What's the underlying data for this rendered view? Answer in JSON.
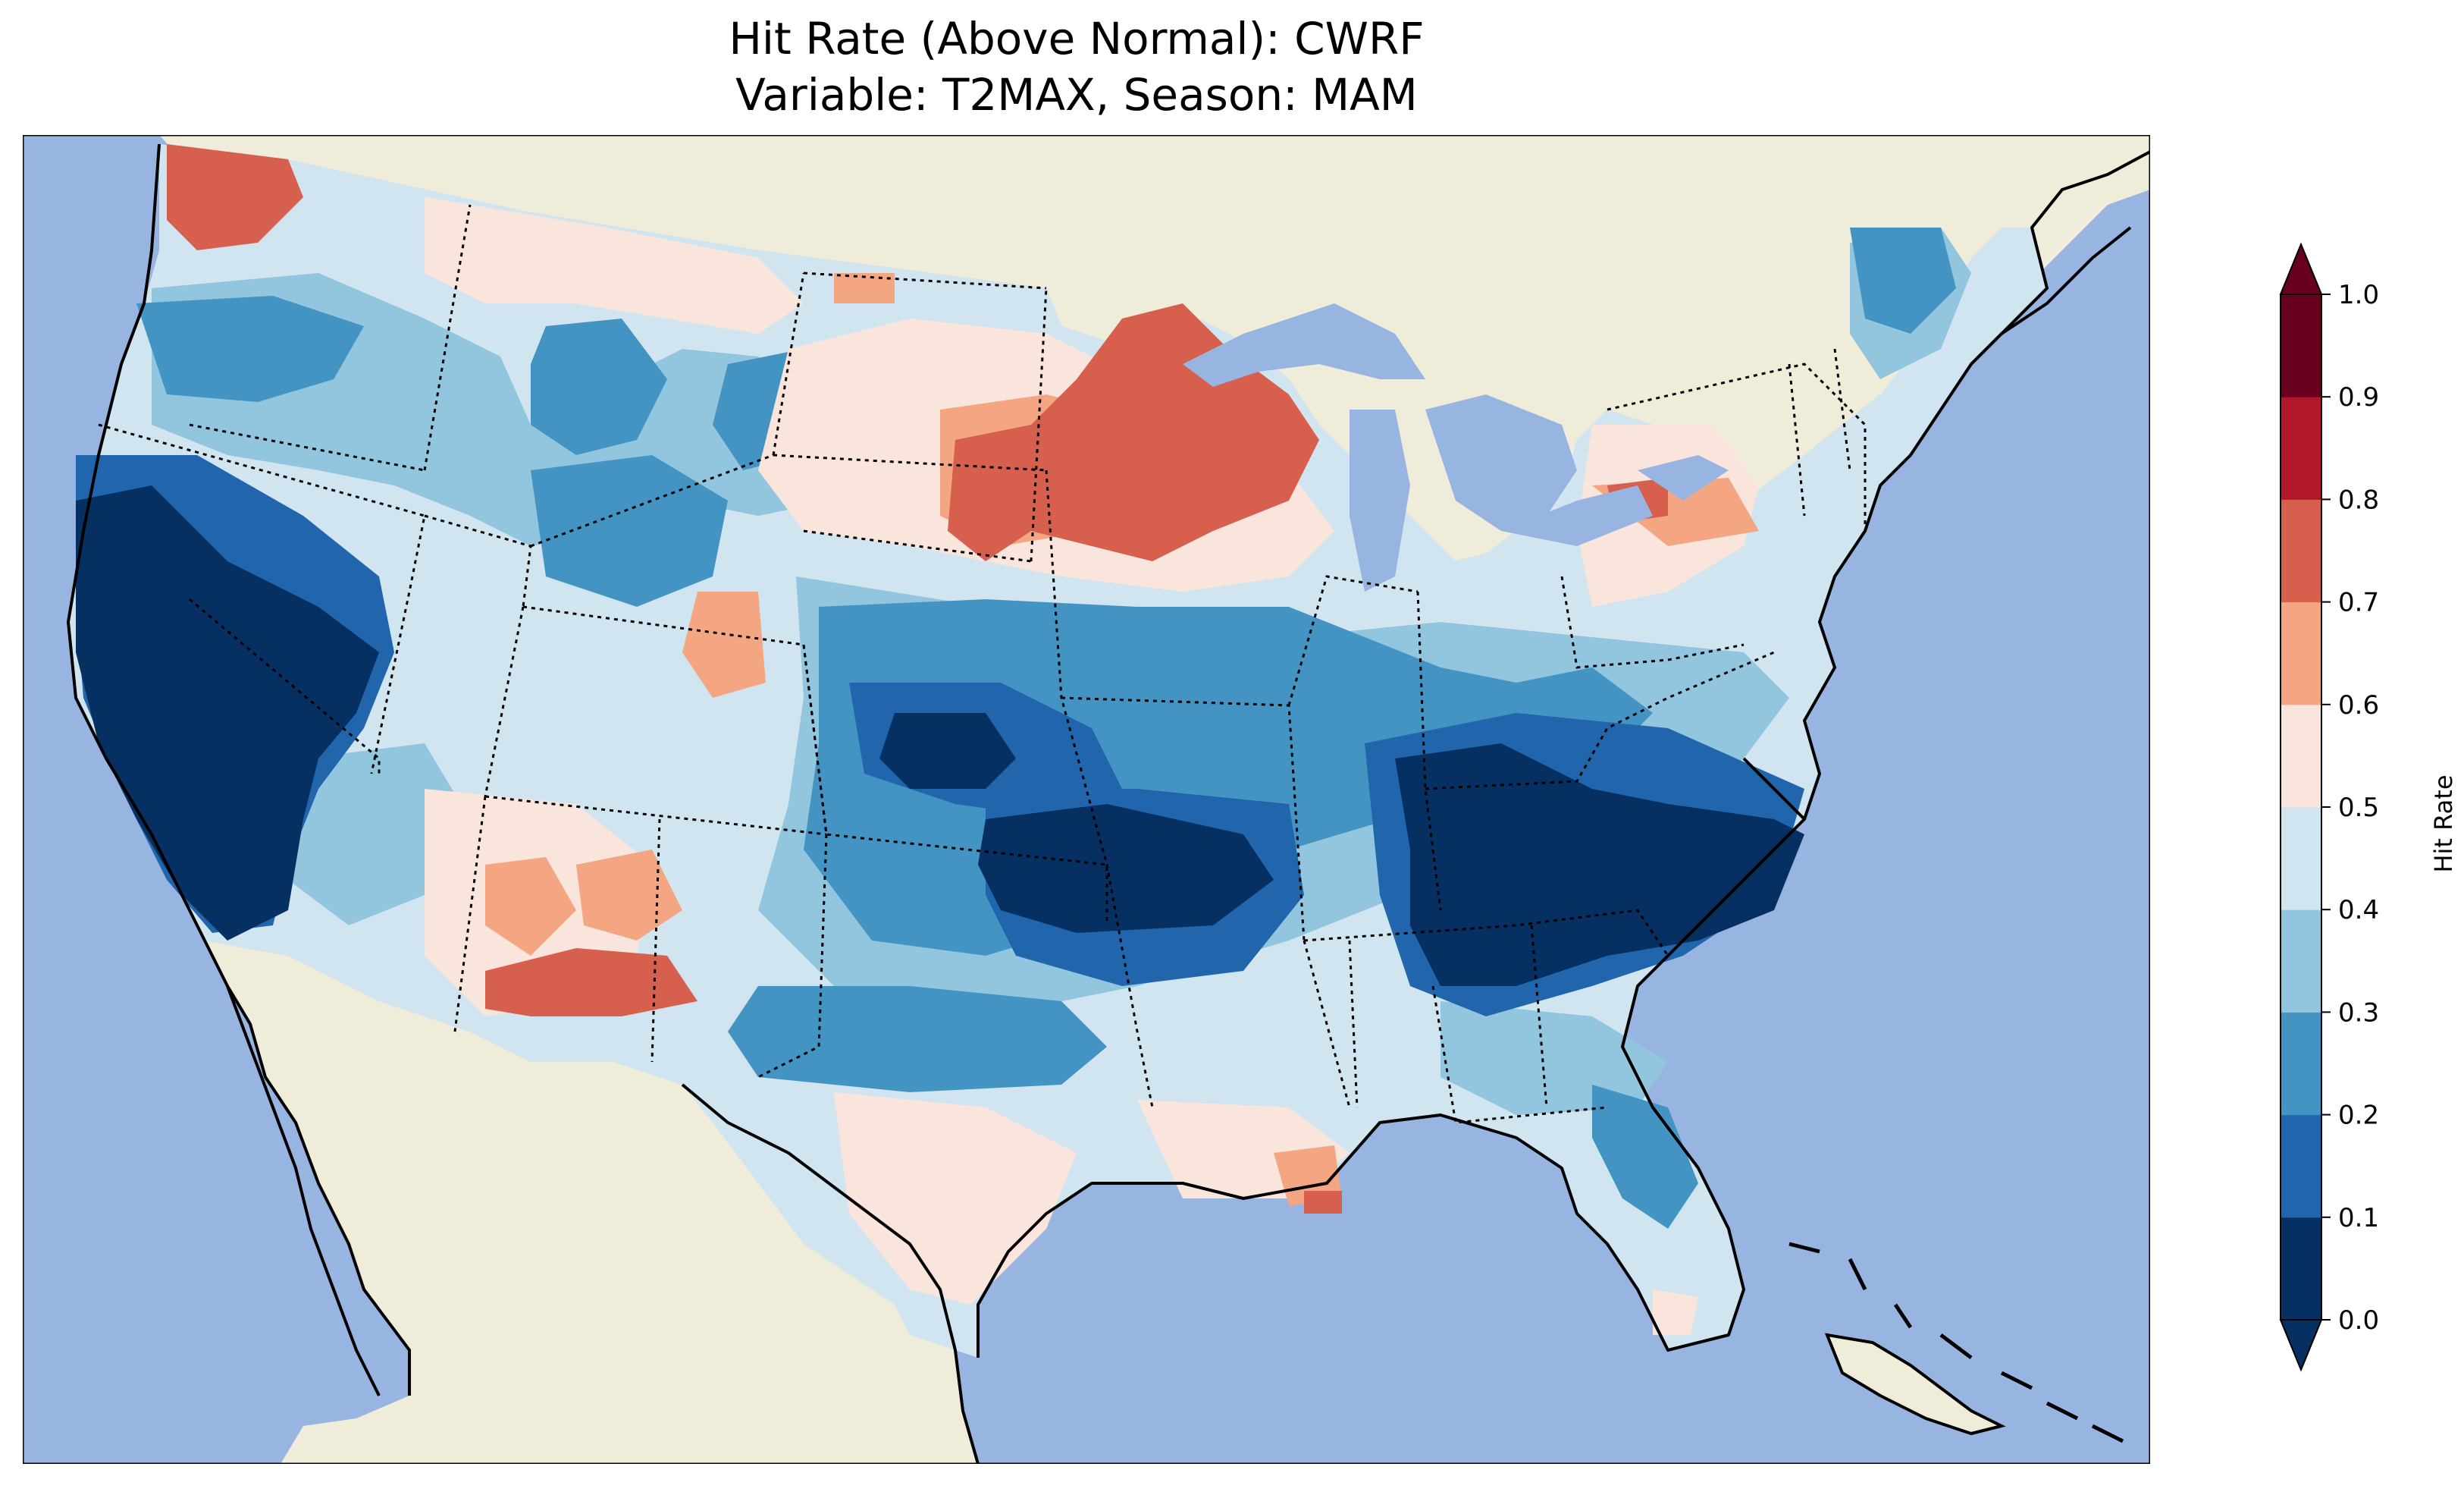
{
  "title": {
    "line1": "Hit Rate (Above Normal): CWRF",
    "line2": "Variable: T2MAX, Season: MAM"
  },
  "colors": {
    "ocean": "#98b5e1",
    "land": "#efecda",
    "frame": "#000000"
  },
  "colorbar": {
    "label": "Hit Rate",
    "ticks": [
      "0.0",
      "0.1",
      "0.2",
      "0.3",
      "0.4",
      "0.5",
      "0.6",
      "0.7",
      "0.8",
      "0.9",
      "1.0"
    ],
    "bins": [
      {
        "range": "0.0-0.1",
        "color": "#053061"
      },
      {
        "range": "0.1-0.2",
        "color": "#2166ac"
      },
      {
        "range": "0.2-0.3",
        "color": "#4393c3"
      },
      {
        "range": "0.3-0.4",
        "color": "#92c5de"
      },
      {
        "range": "0.4-0.5",
        "color": "#d1e5f0"
      },
      {
        "range": "0.5-0.6",
        "color": "#fae5dc"
      },
      {
        "range": "0.6-0.7",
        "color": "#f4a582"
      },
      {
        "range": "0.7-0.8",
        "color": "#d6604d"
      },
      {
        "range": "0.8-0.9",
        "color": "#b2182b"
      },
      {
        "range": "0.9-1.0",
        "color": "#67001f"
      }
    ],
    "extend_under_color": "#053061",
    "extend_over_color": "#67001f"
  }
}
